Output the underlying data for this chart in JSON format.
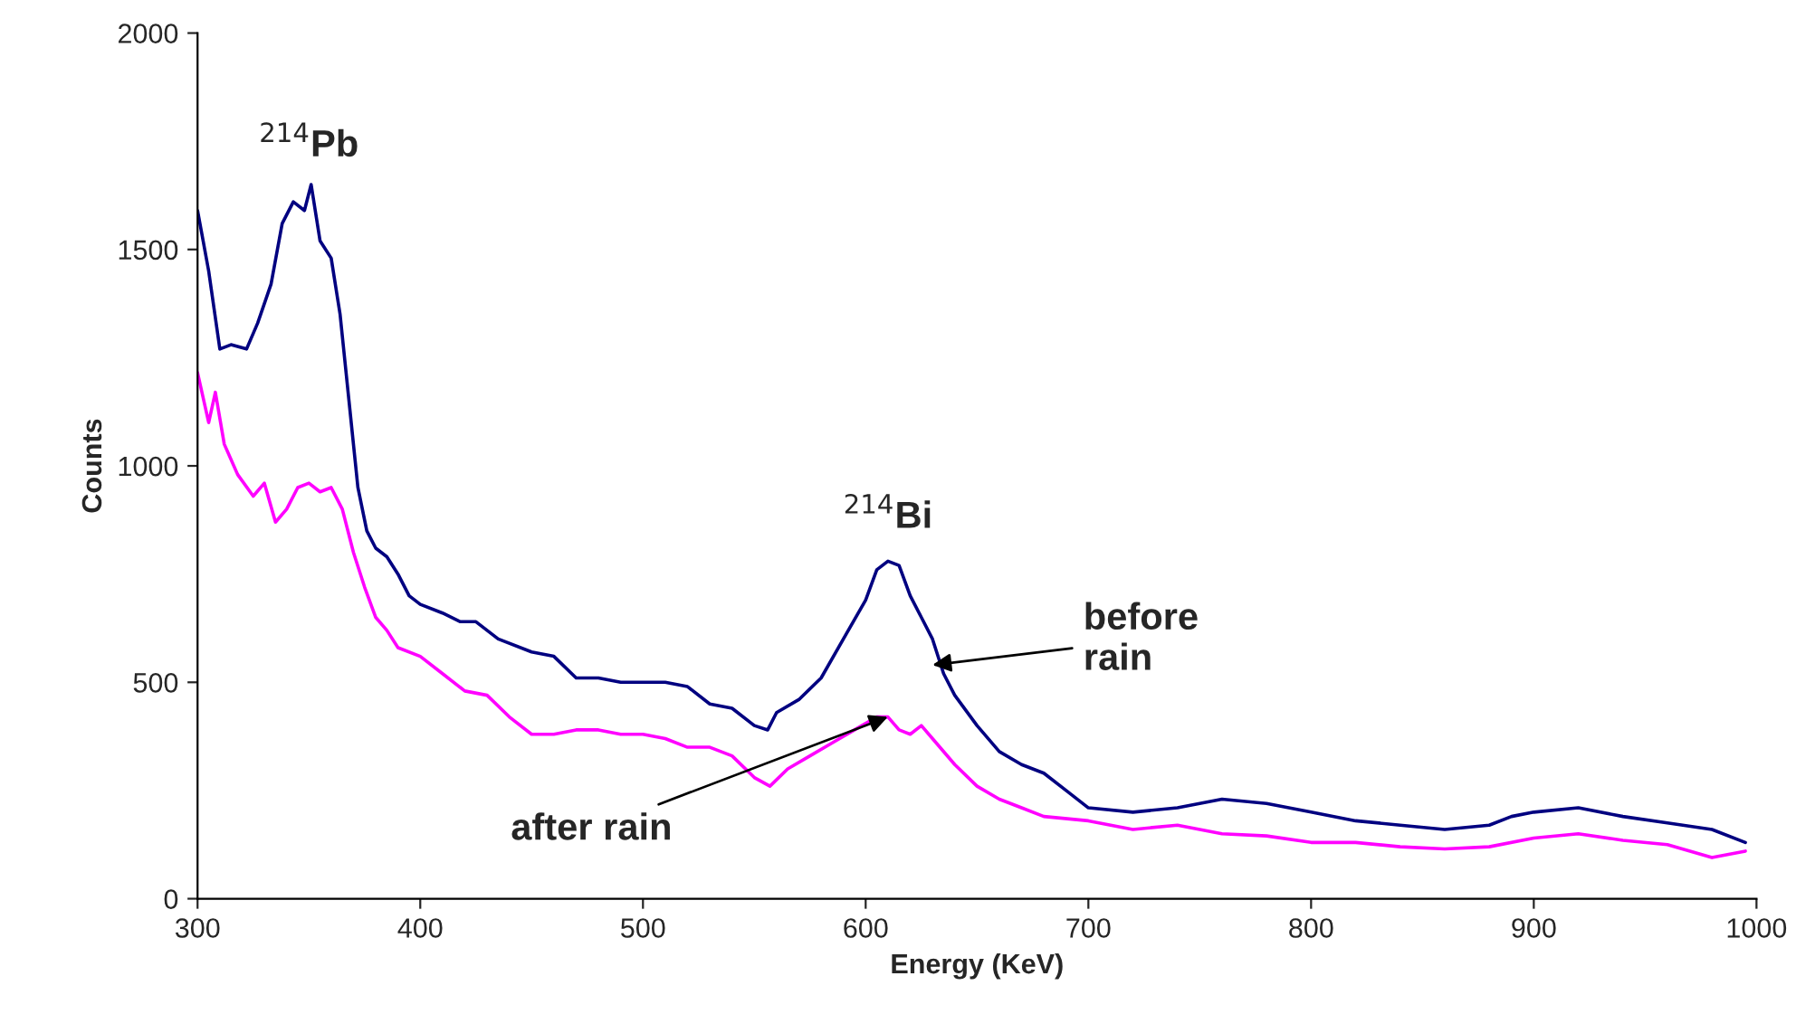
{
  "chart_data": {
    "type": "line",
    "xlabel": "Energy (KeV)",
    "ylabel": "Counts",
    "xlim": [
      300,
      1000
    ],
    "ylim": [
      0,
      2000
    ],
    "xticks": [
      300,
      400,
      500,
      600,
      700,
      800,
      900,
      1000
    ],
    "yticks": [
      0,
      500,
      1000,
      1500,
      2000
    ],
    "grid": false,
    "legend": false,
    "marker": "none",
    "line_style": "solid",
    "series": [
      {
        "color": "#000080",
        "x": [
          300,
          305,
          310,
          315,
          322,
          327,
          333,
          338,
          343,
          348,
          351,
          355,
          360,
          364,
          368,
          372,
          376,
          380,
          385,
          390,
          395,
          400,
          410,
          418,
          425,
          435,
          450,
          460,
          470,
          480,
          490,
          500,
          510,
          520,
          530,
          540,
          550,
          556,
          560,
          570,
          580,
          590,
          600,
          605,
          610,
          615,
          620,
          625,
          630,
          635,
          640,
          650,
          660,
          670,
          680,
          690,
          700,
          720,
          740,
          760,
          780,
          800,
          820,
          840,
          860,
          880,
          890,
          900,
          920,
          940,
          960,
          980,
          995
        ],
        "values": [
          1590,
          1450,
          1270,
          1280,
          1270,
          1330,
          1420,
          1560,
          1610,
          1590,
          1650,
          1520,
          1480,
          1350,
          1150,
          950,
          850,
          810,
          790,
          750,
          700,
          680,
          660,
          640,
          640,
          600,
          570,
          560,
          510,
          510,
          500,
          500,
          500,
          490,
          450,
          440,
          400,
          390,
          430,
          460,
          510,
          600,
          690,
          760,
          780,
          770,
          700,
          650,
          600,
          520,
          470,
          400,
          340,
          310,
          290,
          250,
          210,
          200,
          210,
          230,
          220,
          200,
          180,
          170,
          160,
          170,
          190,
          200,
          210,
          190,
          175,
          160,
          130
        ]
      },
      {
        "color": "#ff00ff",
        "x": [
          300,
          305,
          308,
          312,
          318,
          325,
          330,
          335,
          340,
          345,
          350,
          355,
          360,
          365,
          370,
          375,
          380,
          385,
          390,
          400,
          410,
          420,
          430,
          440,
          450,
          460,
          470,
          480,
          490,
          500,
          510,
          520,
          530,
          540,
          550,
          557,
          565,
          575,
          585,
          595,
          605,
          610,
          615,
          620,
          625,
          630,
          640,
          650,
          660,
          670,
          680,
          700,
          720,
          740,
          760,
          780,
          800,
          820,
          840,
          860,
          880,
          900,
          920,
          940,
          960,
          980,
          995
        ],
        "values": [
          1215,
          1100,
          1170,
          1050,
          980,
          930,
          960,
          870,
          900,
          950,
          960,
          940,
          950,
          900,
          800,
          720,
          650,
          620,
          580,
          560,
          520,
          480,
          470,
          420,
          380,
          380,
          390,
          390,
          380,
          380,
          370,
          350,
          350,
          330,
          280,
          260,
          300,
          330,
          360,
          390,
          420,
          420,
          390,
          380,
          400,
          370,
          310,
          260,
          230,
          210,
          190,
          180,
          160,
          170,
          150,
          145,
          130,
          130,
          120,
          115,
          120,
          140,
          150,
          135,
          125,
          95,
          110
        ]
      }
    ],
    "annotations": [
      {
        "text": "$^{214}$Pb",
        "x": 350,
        "y": 1650
      },
      {
        "text": "$^{214}$Bi",
        "x": 610,
        "y": 780
      },
      {
        "text": "before\nrain",
        "x": 630,
        "y": 540
      },
      {
        "text": "after rain",
        "x": 610,
        "y": 420
      }
    ]
  }
}
